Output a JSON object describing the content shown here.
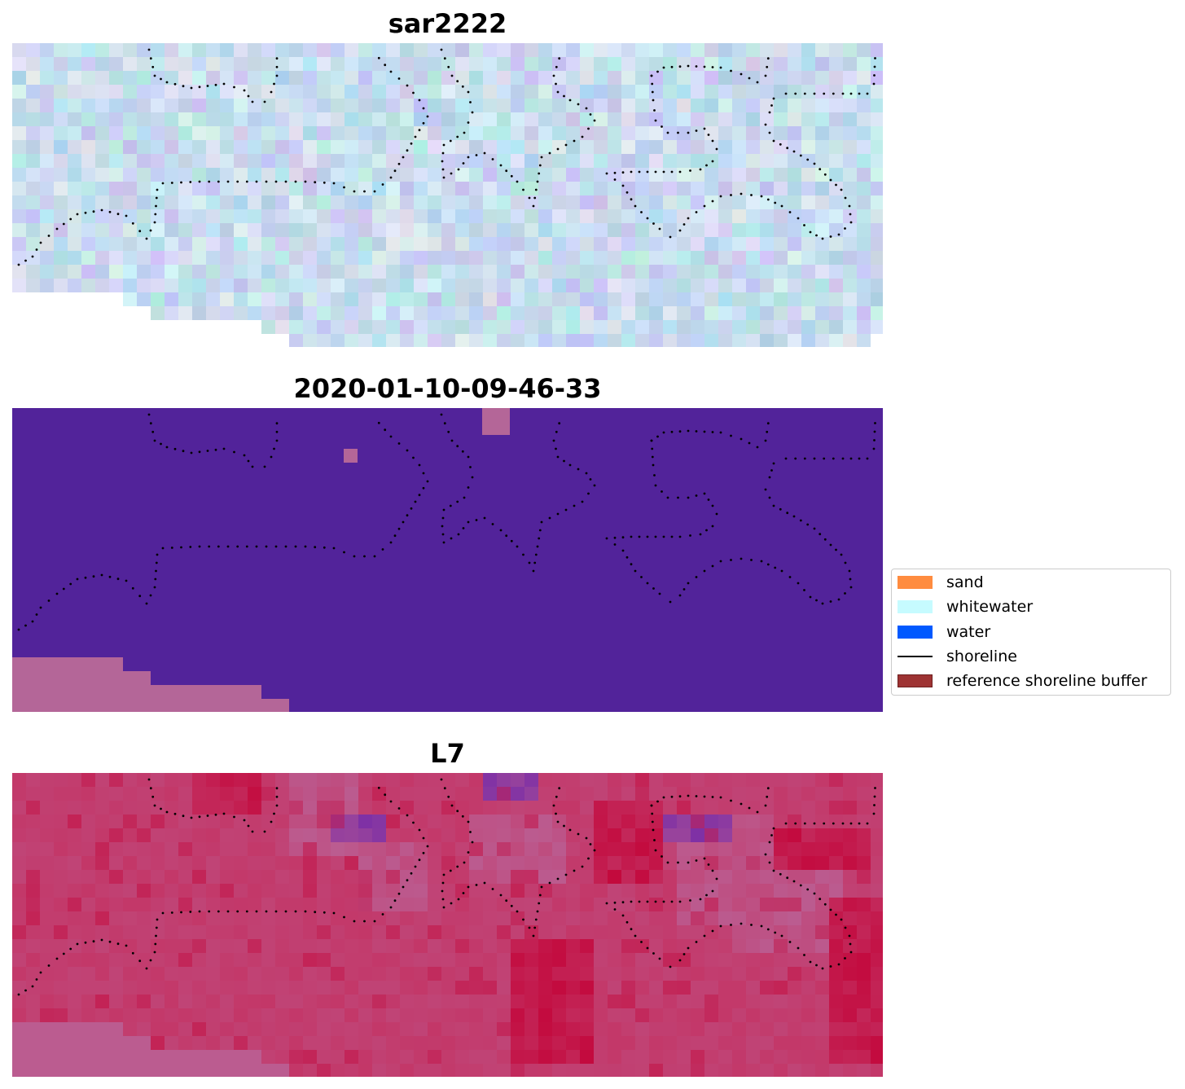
{
  "panels": [
    {
      "id": "rgb",
      "title": "sar2222",
      "style": "rgb"
    },
    {
      "id": "classified",
      "title": "2020-01-10-09-46-33",
      "style": "classified"
    },
    {
      "id": "index",
      "title": "L7",
      "style": "index"
    }
  ],
  "colors": {
    "classified_background": "#52239a",
    "classified_patch": "#b46698",
    "index_base": "#c33768",
    "index_pink": "#bb5c90",
    "index_purple": "#7c2fa6",
    "index_red": "#c3063a",
    "rgb_base": "#cfe3ef",
    "shoreline_dots": "#000000"
  },
  "legend": {
    "items": [
      {
        "label": "sand",
        "type": "patch",
        "color": "#ff8c3f",
        "border": "#ff8c3f"
      },
      {
        "label": "whitewater",
        "type": "patch",
        "color": "#c6fbff",
        "border": "#c6fbff"
      },
      {
        "label": "water",
        "type": "patch",
        "color": "#0059ff",
        "border": "#0059ff"
      },
      {
        "label": "shoreline",
        "type": "line",
        "color": "#000000"
      },
      {
        "label": "reference shoreline buffer",
        "type": "patch",
        "color": "#9e3333",
        "border": "#6e1f1f"
      }
    ]
  }
}
